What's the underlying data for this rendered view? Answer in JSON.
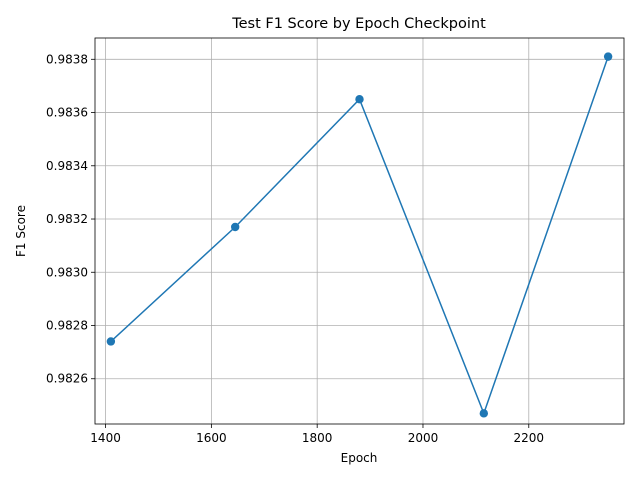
{
  "chart_data": {
    "type": "line",
    "title": "Test F1 Score by Epoch Checkpoint",
    "xlabel": "Epoch",
    "ylabel": "F1 Score",
    "x": [
      1410,
      1645,
      1880,
      2115,
      2350
    ],
    "series": [
      {
        "values": [
          0.98274,
          0.98317,
          0.98365,
          0.98247,
          0.98381
        ],
        "color": "#1f77b4",
        "marker": "circle"
      }
    ],
    "xlim": [
      1380,
      2380
    ],
    "ylim": [
      0.98243,
      0.98388
    ],
    "xticks": [
      1400,
      1600,
      1800,
      2000,
      2200
    ],
    "xtick_labels": [
      "1400",
      "1600",
      "1800",
      "2000",
      "2200"
    ],
    "yticks": [
      0.9826,
      0.9828,
      0.983,
      0.9832,
      0.9834,
      0.9836,
      0.9838
    ],
    "ytick_labels": [
      "0.9826",
      "0.9828",
      "0.9830",
      "0.9832",
      "0.9834",
      "0.9836",
      "0.9838"
    ],
    "grid": true
  }
}
